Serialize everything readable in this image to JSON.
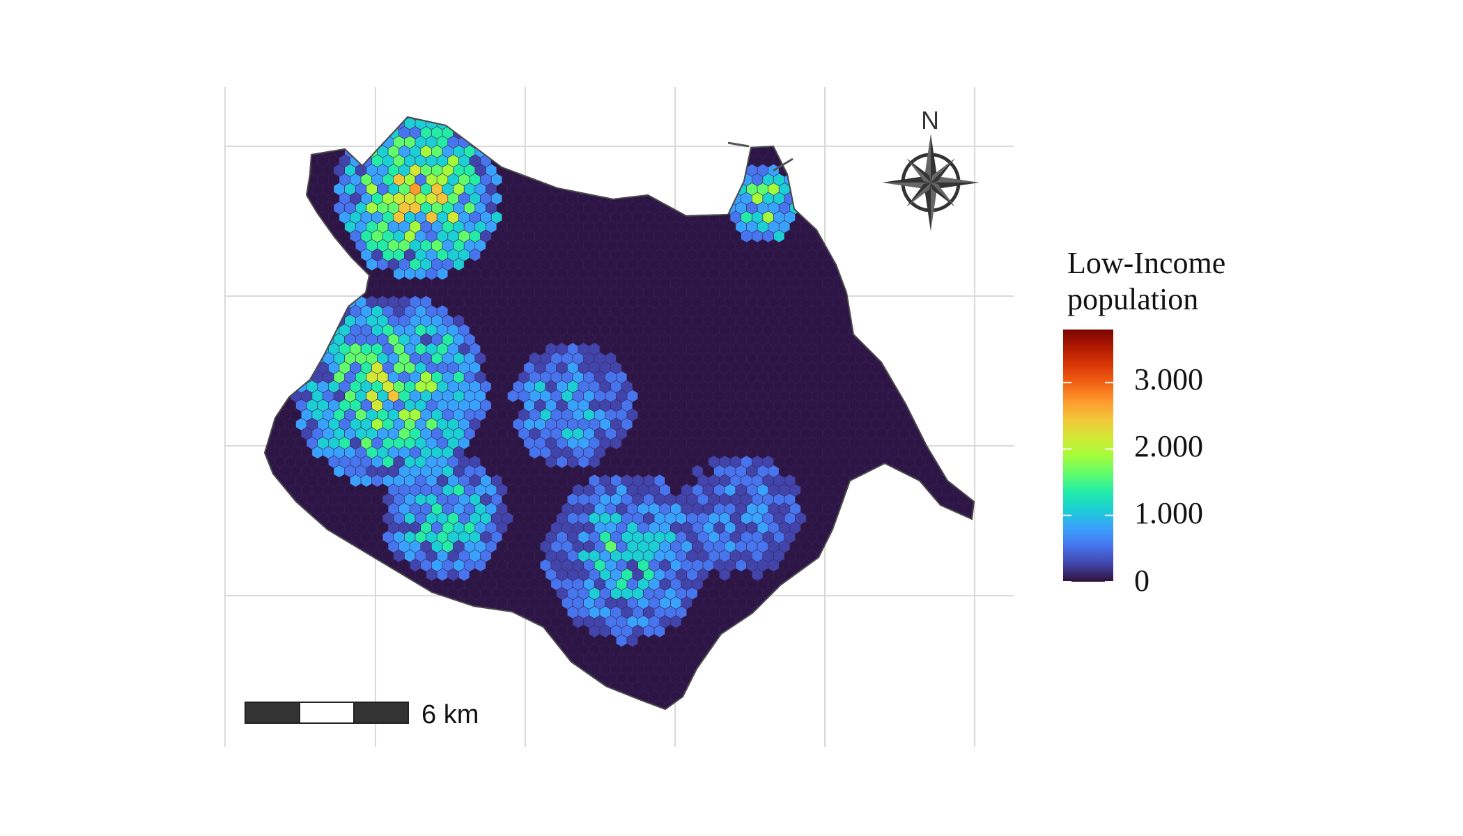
{
  "map": {
    "legend_title_line1": "Low-Income",
    "legend_title_line2": "population",
    "legend_labels": [
      "3.000",
      "2.000",
      "1.000",
      "0"
    ],
    "legend_values": [
      3000,
      2000,
      1000,
      0
    ],
    "legend_max": 3800,
    "colormap": [
      "#30123b",
      "#4145ab",
      "#4675ed",
      "#39a2fc",
      "#1bcfd4",
      "#24eca6",
      "#61fc6c",
      "#a4fc3b",
      "#d1e834",
      "#f3c63a",
      "#fe9b2d",
      "#f36315",
      "#d93806",
      "#b11901",
      "#7a0402"
    ],
    "background_fill": "#2d1546",
    "scale_bar_label": "6 km",
    "north_label": "N",
    "grid": true,
    "hotspots": [
      {
        "area": "north-west",
        "level": 1800
      },
      {
        "area": "west",
        "level": 1500
      },
      {
        "area": "south-west",
        "level": 1100
      },
      {
        "area": "center",
        "level": 900
      },
      {
        "area": "south-center",
        "level": 1000
      },
      {
        "area": "north-east",
        "level": 1600
      },
      {
        "area": "east-center",
        "level": 700
      }
    ]
  }
}
